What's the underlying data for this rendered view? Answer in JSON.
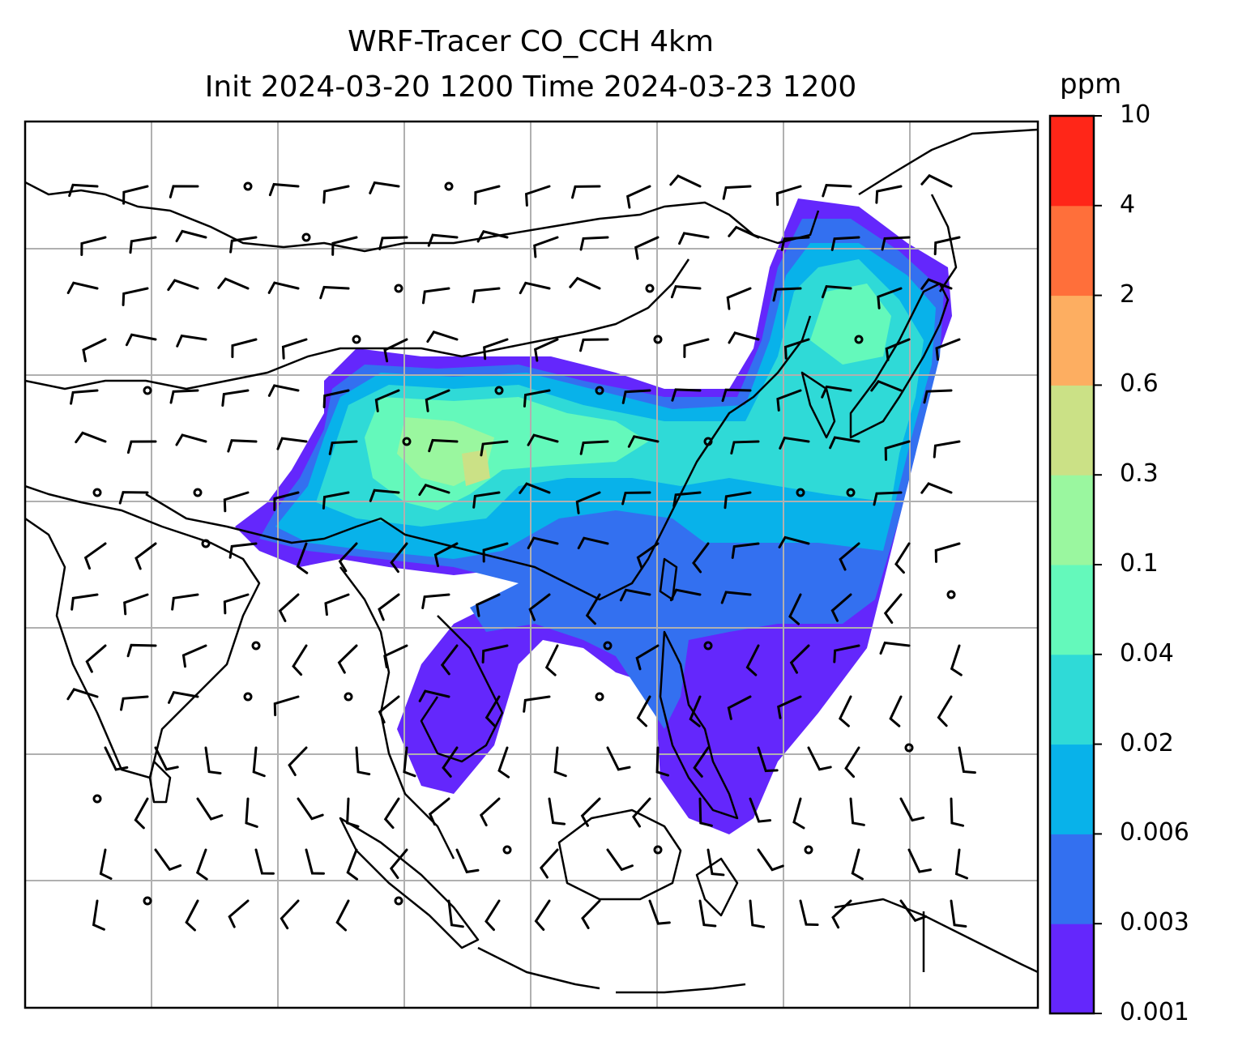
{
  "title": {
    "line1": "WRF-Tracer CO_CCH 4km",
    "line2": "Init 2024-03-20 1200 Time 2024-03-23 1200"
  },
  "colorbar": {
    "units": "ppm",
    "ticks": [
      "0.001",
      "0.003",
      "0.006",
      "0.02",
      "0.04",
      "0.1",
      "0.3",
      "0.6",
      "2",
      "4",
      "10"
    ],
    "colors": [
      "#6427fc",
      "#3370f0",
      "#08b2ea",
      "#2fdad7",
      "#64f9bb",
      "#9af79f",
      "#cbe186",
      "#fdae61",
      "#ff6f3a",
      "#ff2618"
    ]
  },
  "map": {
    "frame_color": "#000000",
    "grid_color": "#b0b0b0",
    "coastline_color": "#000000",
    "barb_color": "#000000"
  }
}
